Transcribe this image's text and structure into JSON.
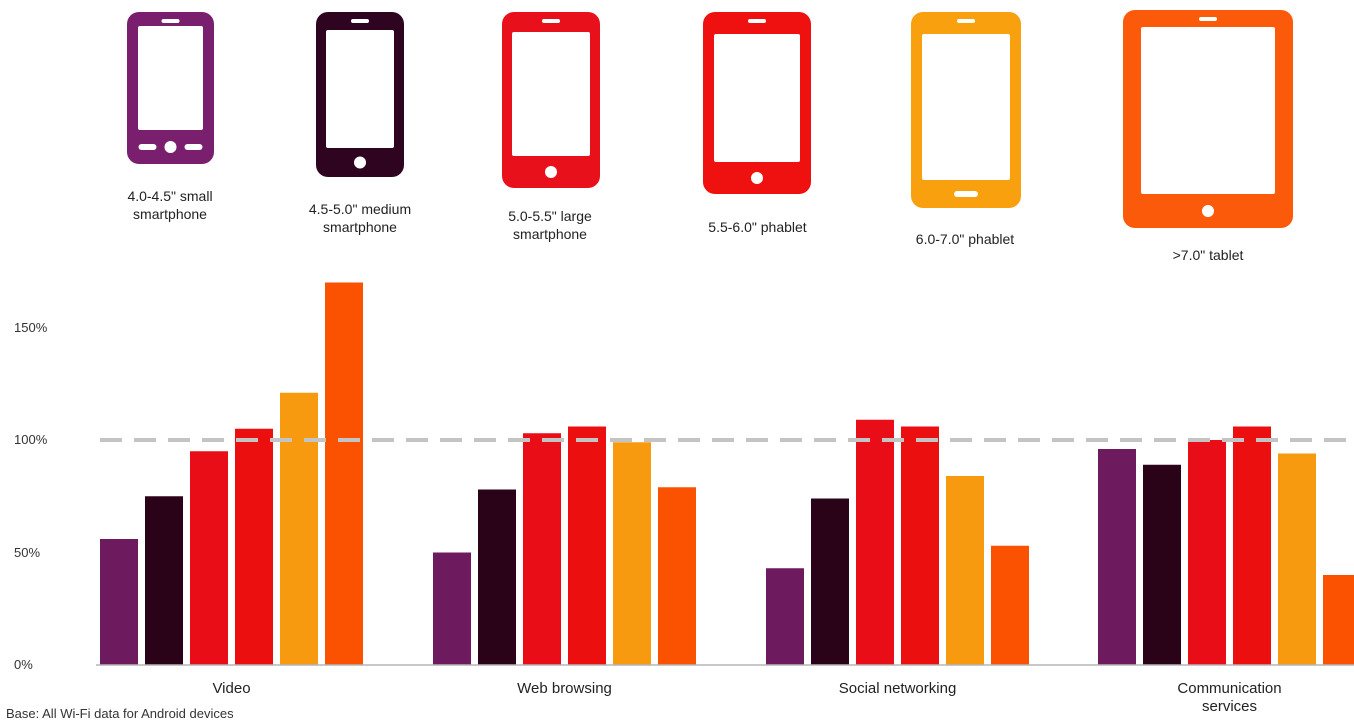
{
  "chart_data": {
    "type": "bar",
    "categories": [
      "Video",
      "Web browsing",
      "Social networking",
      "Communication\nservices"
    ],
    "series": [
      {
        "name": "4.0-4.5\" small\nsmartphone",
        "values": [
          56,
          50,
          43,
          96
        ],
        "color": "#6e1a5e"
      },
      {
        "name": "4.5-5.0\" medium\nsmartphone",
        "values": [
          75,
          78,
          74,
          89
        ],
        "color": "#2b0319"
      },
      {
        "name": "5.0-5.5\" large\nsmartphone",
        "values": [
          95,
          103,
          109,
          100
        ],
        "color": "#e90d18"
      },
      {
        "name": "5.5-6.0\" phablet",
        "values": [
          105,
          106,
          106,
          106
        ],
        "color": "#eb0f0f"
      },
      {
        "name": "6.0-7.0\" phablet",
        "values": [
          121,
          99,
          84,
          94
        ],
        "color": "#f79a0f"
      },
      {
        "name": ">7.0\" tablet",
        "values": [
          170,
          79,
          53,
          40
        ],
        "color": "#fa5200"
      }
    ],
    "yticks": [
      "0%",
      "50%",
      "100%",
      "150%"
    ],
    "ylim": [
      0,
      180
    ],
    "reference_line": 100,
    "grid": false,
    "legend": "top (device icons)"
  },
  "device_icons": [
    {
      "kind": "phone-icon",
      "color": "#7a1f6e"
    },
    {
      "kind": "phone-icon",
      "color": "#2e0420"
    },
    {
      "kind": "phone-icon",
      "color": "#e8111b"
    },
    {
      "kind": "phone-icon",
      "color": "#ef1010"
    },
    {
      "kind": "phone-icon",
      "color": "#f9a00f"
    },
    {
      "kind": "tablet-icon",
      "color": "#fa5a0a"
    }
  ],
  "footnote": "Base: All Wi-Fi data for Android devices"
}
